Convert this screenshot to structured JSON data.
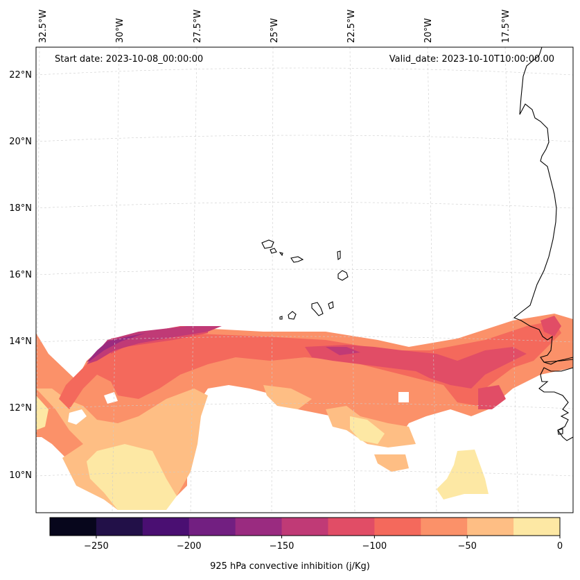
{
  "annotations": {
    "start_date": "Start date: 2023-10-08_00:00:00",
    "valid_date": "Valid_date: 2023-10-10T10:00:00.00"
  },
  "map": {
    "lon_labels": [
      "32.5°W",
      "30°W",
      "27.5°W",
      "25°W",
      "22.5°W",
      "20°W",
      "17.5°W"
    ],
    "lat_labels": [
      "22°N",
      "20°N",
      "18°N",
      "16°N",
      "14°N",
      "12°N",
      "10°N"
    ],
    "field": "925 hPa convective inhibition",
    "gridlines": true
  },
  "colorbar": {
    "label": "925 hPa convective inhibition (j/Kg)",
    "ticks": [
      "−250",
      "−200",
      "−150",
      "−100",
      "−50",
      "0"
    ],
    "levels": [
      -275,
      -250,
      -225,
      -200,
      -175,
      -150,
      -125,
      -100,
      -75,
      -50,
      -25,
      0
    ],
    "colors": [
      "#07061c",
      "#221048",
      "#4a0f72",
      "#721f81",
      "#9a2b80",
      "#c03a76",
      "#e14d66",
      "#f4695c",
      "#fb9169",
      "#febe84",
      "#fde8a4"
    ]
  }
}
